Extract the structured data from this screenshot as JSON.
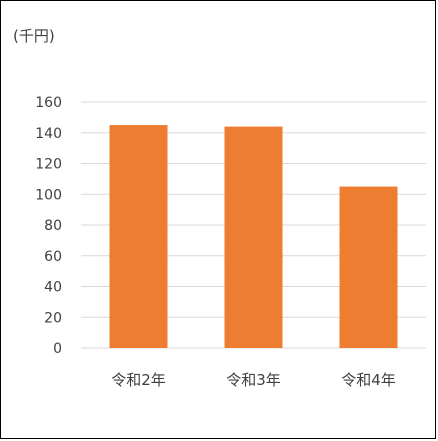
{
  "chart_data": {
    "type": "bar",
    "unit_label": "(千円)",
    "categories": [
      "令和2年",
      "令和3年",
      "令和4年"
    ],
    "values": [
      145,
      144,
      105
    ],
    "ylim": [
      0,
      160
    ],
    "yticks": [
      0,
      20,
      40,
      60,
      80,
      100,
      120,
      140,
      160
    ],
    "grid": true,
    "legend": "none",
    "bar_color": "#ED7D31",
    "grid_color": "#D9D9D9"
  }
}
